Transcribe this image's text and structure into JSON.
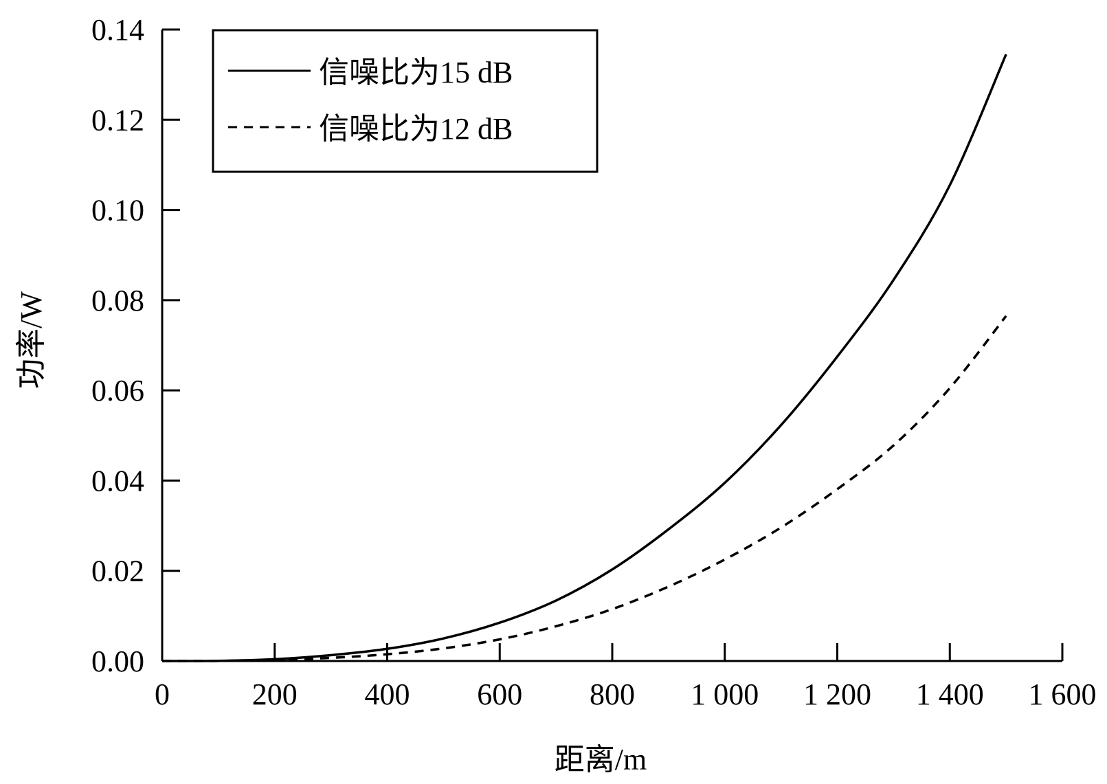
{
  "chart_data": {
    "type": "line",
    "xlabel": "距离/m",
    "ylabel": "功率/W",
    "xlim": [
      0,
      1600
    ],
    "ylim": [
      0,
      0.14
    ],
    "x_ticks": [
      0,
      200,
      400,
      600,
      800,
      1000,
      1200,
      1400,
      1600
    ],
    "x_tick_labels": [
      "0",
      "200",
      "400",
      "600",
      "800",
      "1 000",
      "1 200",
      "1 400",
      "1 600"
    ],
    "y_ticks": [
      0,
      0.02,
      0.04,
      0.06,
      0.08,
      0.1,
      0.12,
      0.14
    ],
    "y_tick_labels": [
      "0.00",
      "0.02",
      "0.04",
      "0.06",
      "0.08",
      "0.10",
      "0.12",
      "0.14"
    ],
    "grid": false,
    "legend_position": "top-left",
    "x": [
      0,
      100,
      200,
      300,
      400,
      500,
      600,
      700,
      800,
      900,
      1000,
      1100,
      1200,
      1300,
      1400,
      1500
    ],
    "series": [
      {
        "name": "信噪比为15 dB",
        "style": "solid",
        "color": "#000000",
        "values": [
          0,
          4e-05,
          0.0004,
          0.0013,
          0.0027,
          0.005,
          0.0085,
          0.0134,
          0.0203,
          0.0292,
          0.0395,
          0.0523,
          0.0675,
          0.0845,
          0.1055,
          0.1345
        ]
      },
      {
        "name": "信噪比为12 dB",
        "style": "dashed",
        "color": "#000000",
        "values": [
          0,
          2e-05,
          0.0002,
          0.0007,
          0.0015,
          0.0028,
          0.0048,
          0.0077,
          0.0115,
          0.0165,
          0.0225,
          0.0296,
          0.0381,
          0.0478,
          0.0605,
          0.0765
        ]
      }
    ]
  }
}
